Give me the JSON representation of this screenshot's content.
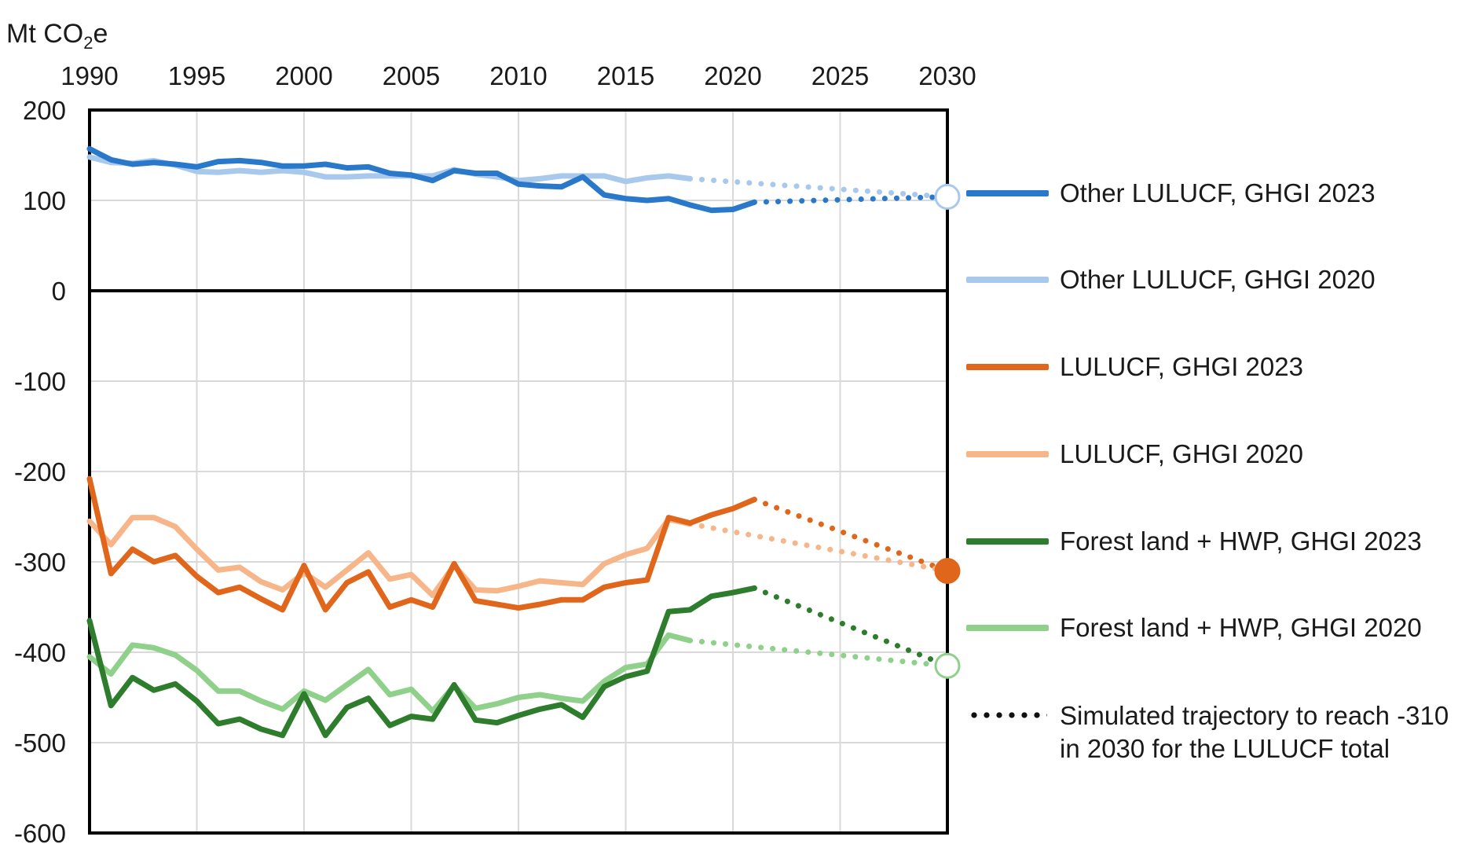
{
  "chart_data": {
    "type": "line",
    "ylabel": "Mt CO",
    "ylabel_sub": "2",
    "ylabel_suffix": "e",
    "xlim": [
      1990,
      2030
    ],
    "ylim": [
      -600,
      200
    ],
    "x_ticks": [
      1990,
      1995,
      2000,
      2005,
      2010,
      2015,
      2020,
      2025,
      2030
    ],
    "y_ticks": [
      200,
      100,
      0,
      -100,
      -200,
      -300,
      -400,
      -500,
      -600
    ],
    "x_axis_position": "top",
    "grid": true,
    "legend_placement": "right",
    "series": [
      {
        "name": "Other LULUCF, GHGI 2023",
        "color": "#2a78c9",
        "x": [
          1990,
          1991,
          1992,
          1993,
          1994,
          1995,
          1996,
          1997,
          1998,
          1999,
          2000,
          2001,
          2002,
          2003,
          2004,
          2005,
          2006,
          2007,
          2008,
          2009,
          2010,
          2011,
          2012,
          2013,
          2014,
          2015,
          2016,
          2017,
          2018,
          2019,
          2020,
          2021
        ],
        "y": [
          157,
          145,
          140,
          142,
          140,
          137,
          143,
          144,
          142,
          138,
          138,
          140,
          136,
          137,
          130,
          128,
          122,
          133,
          130,
          130,
          118,
          116,
          115,
          126,
          106,
          102,
          100,
          102,
          95,
          89,
          90,
          98
        ],
        "projection": {
          "x": [
            2021,
            2030
          ],
          "y": [
            98,
            104
          ]
        }
      },
      {
        "name": "Other LULUCF, GHGI 2020",
        "color": "#a9c9ec",
        "x": [
          1990,
          1991,
          1992,
          1993,
          1994,
          1995,
          1996,
          1997,
          1998,
          1999,
          2000,
          2001,
          2002,
          2003,
          2004,
          2005,
          2006,
          2007,
          2008,
          2009,
          2010,
          2011,
          2012,
          2013,
          2014,
          2015,
          2016,
          2017,
          2018
        ],
        "y": [
          148,
          142,
          141,
          144,
          139,
          132,
          131,
          133,
          131,
          133,
          131,
          126,
          126,
          127,
          127,
          127,
          127,
          134,
          129,
          126,
          122,
          124,
          127,
          127,
          127,
          121,
          125,
          127,
          124
        ],
        "projection": {
          "x": [
            2018,
            2030
          ],
          "y": [
            124,
            104
          ]
        }
      },
      {
        "name": "LULUCF, GHGI 2023",
        "color": "#e0661b",
        "x": [
          1990,
          1991,
          1992,
          1993,
          1994,
          1995,
          1996,
          1997,
          1998,
          1999,
          2000,
          2001,
          2002,
          2003,
          2004,
          2005,
          2006,
          2007,
          2008,
          2009,
          2010,
          2011,
          2012,
          2013,
          2014,
          2015,
          2016,
          2017,
          2018,
          2019,
          2020,
          2021
        ],
        "y": [
          -208,
          -313,
          -286,
          -300,
          -293,
          -316,
          -334,
          -328,
          -341,
          -353,
          -304,
          -353,
          -323,
          -311,
          -350,
          -342,
          -350,
          -302,
          -343,
          -347,
          -351,
          -347,
          -342,
          -342,
          -328,
          -323,
          -320,
          -251,
          -257,
          -248,
          -241,
          -231
        ],
        "projection": {
          "x": [
            2021,
            2030
          ],
          "y": [
            -231,
            -310
          ]
        },
        "end_marker": {
          "x": 2030,
          "y": -310,
          "style": "filled"
        }
      },
      {
        "name": "LULUCF, GHGI 2020",
        "color": "#f7b68a",
        "x": [
          1990,
          1991,
          1992,
          1993,
          1994,
          1995,
          1996,
          1997,
          1998,
          1999,
          2000,
          2001,
          2002,
          2003,
          2004,
          2005,
          2006,
          2007,
          2008,
          2009,
          2010,
          2011,
          2012,
          2013,
          2014,
          2015,
          2016,
          2017,
          2018
        ],
        "y": [
          -255,
          -281,
          -251,
          -251,
          -261,
          -286,
          -309,
          -306,
          -322,
          -331,
          -312,
          -328,
          -309,
          -290,
          -319,
          -314,
          -337,
          -304,
          -331,
          -332,
          -327,
          -321,
          -323,
          -325,
          -302,
          -292,
          -285,
          -253,
          -258
        ],
        "projection": {
          "x": [
            2018,
            2030
          ],
          "y": [
            -258,
            -310
          ]
        }
      },
      {
        "name": "Forest land + HWP, GHGI 2023",
        "color": "#2e7d2c",
        "x": [
          1990,
          1991,
          1992,
          1993,
          1994,
          1995,
          1996,
          1997,
          1998,
          1999,
          2000,
          2001,
          2002,
          2003,
          2004,
          2005,
          2006,
          2007,
          2008,
          2009,
          2010,
          2011,
          2012,
          2013,
          2014,
          2015,
          2016,
          2017,
          2018,
          2019,
          2020,
          2021
        ],
        "y": [
          -365,
          -459,
          -428,
          -442,
          -435,
          -454,
          -479,
          -474,
          -485,
          -492,
          -446,
          -492,
          -461,
          -451,
          -481,
          -471,
          -474,
          -436,
          -475,
          -478,
          -470,
          -463,
          -458,
          -472,
          -438,
          -427,
          -421,
          -355,
          -353,
          -338,
          -334,
          -329
        ],
        "projection": {
          "x": [
            2021,
            2030
          ],
          "y": [
            -329,
            -415
          ]
        }
      },
      {
        "name": "Forest land + HWP, GHGI 2020",
        "color": "#8fd08a",
        "x": [
          1990,
          1991,
          1992,
          1993,
          1994,
          1995,
          1996,
          1997,
          1998,
          1999,
          2000,
          2001,
          2002,
          2003,
          2004,
          2005,
          2006,
          2007,
          2008,
          2009,
          2010,
          2011,
          2012,
          2013,
          2014,
          2015,
          2016,
          2017,
          2018
        ],
        "y": [
          -405,
          -424,
          -392,
          -395,
          -403,
          -420,
          -443,
          -443,
          -454,
          -463,
          -443,
          -453,
          -436,
          -419,
          -447,
          -441,
          -465,
          -437,
          -462,
          -457,
          -450,
          -447,
          -451,
          -454,
          -432,
          -417,
          -413,
          -381,
          -387
        ],
        "projection": {
          "x": [
            2018,
            2030
          ],
          "y": [
            -387,
            -415
          ]
        }
      }
    ],
    "markers": [
      {
        "x": 2030,
        "y": 104,
        "style": "hollow",
        "color": "#a9c9ec"
      },
      {
        "x": 2030,
        "y": -310,
        "style": "filled",
        "color": "#e0661b"
      },
      {
        "x": 2030,
        "y": -415,
        "style": "hollow",
        "color": "#8fd08a"
      }
    ],
    "legend_extra": {
      "label": "Simulated trajectory to reach -310\nin 2030 for the LULUCF total",
      "style": "dotted",
      "color": "#111111"
    }
  }
}
